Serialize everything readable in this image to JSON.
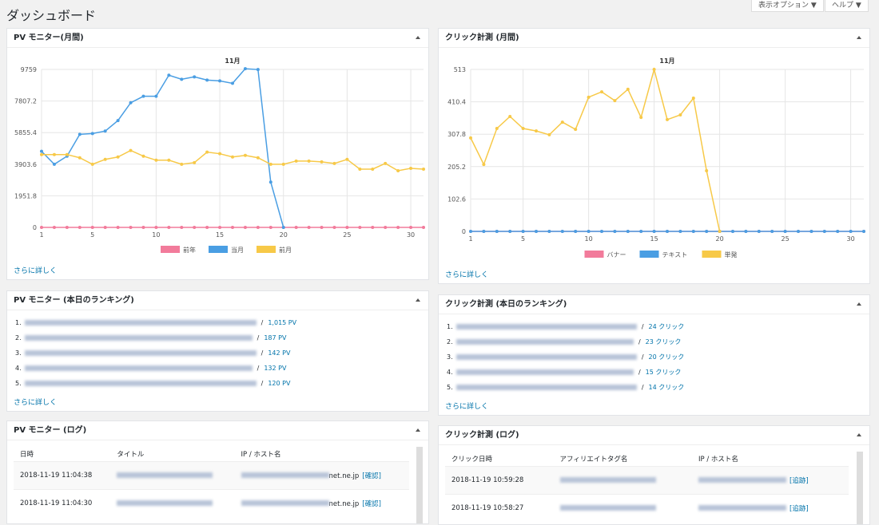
{
  "header": {
    "title": "ダッシュボード",
    "buttons": [
      "表示オプション ▼",
      "ヘルプ ▼"
    ]
  },
  "chart_data": [
    {
      "type": "line",
      "panel_title": "PV モニター(月間)",
      "title": "11月",
      "more": "さらに詳しく",
      "x": [
        1,
        2,
        3,
        4,
        5,
        6,
        7,
        8,
        9,
        10,
        11,
        12,
        13,
        14,
        15,
        16,
        17,
        18,
        19,
        20,
        21,
        22,
        23,
        24,
        25,
        26,
        27,
        28,
        29,
        30,
        31
      ],
      "xlim": [
        1,
        31
      ],
      "xticks": [
        1,
        5,
        10,
        15,
        20,
        25,
        30
      ],
      "ylim": [
        0,
        9759
      ],
      "yticks": [
        0,
        1951.8,
        3903.6,
        5855.4,
        7807.2,
        9759
      ],
      "grid": true,
      "legend": "bottom",
      "series": [
        {
          "name": "前年",
          "color": "#f27b9b",
          "values": [
            0,
            0,
            0,
            0,
            0,
            0,
            0,
            0,
            0,
            0,
            0,
            0,
            0,
            0,
            0,
            0,
            0,
            0,
            0,
            0,
            0,
            0,
            0,
            0,
            0,
            0,
            0,
            0,
            0,
            0,
            0
          ]
        },
        {
          "name": "当月",
          "color": "#4a9ee3",
          "values": [
            4700,
            3900,
            4400,
            5750,
            5800,
            5950,
            6600,
            7700,
            8100,
            8100,
            9400,
            9150,
            9300,
            9100,
            9050,
            8900,
            9800,
            9750,
            2800,
            0,
            null,
            null,
            null,
            null,
            null,
            null,
            null,
            null,
            null,
            null,
            null
          ]
        },
        {
          "name": "前月",
          "color": "#f7c948",
          "values": [
            4500,
            4500,
            4500,
            4300,
            3900,
            4200,
            4350,
            4750,
            4400,
            4150,
            4150,
            3900,
            4000,
            4650,
            4550,
            4350,
            4450,
            4300,
            3900,
            3900,
            4100,
            4100,
            4050,
            3950,
            4200,
            3600,
            3600,
            3950,
            3500,
            3650,
            3600
          ]
        }
      ]
    },
    {
      "type": "line",
      "panel_title": "クリック計測 (月間)",
      "title": "11月",
      "more": "さらに詳しく",
      "x": [
        1,
        2,
        3,
        4,
        5,
        6,
        7,
        8,
        9,
        10,
        11,
        12,
        13,
        14,
        15,
        16,
        17,
        18,
        19,
        20,
        21,
        22,
        23,
        24,
        25,
        26,
        27,
        28,
        29,
        30,
        31
      ],
      "xlim": [
        1,
        31
      ],
      "xticks": [
        1,
        5,
        10,
        15,
        20,
        25,
        30
      ],
      "ylim": [
        0,
        513
      ],
      "yticks": [
        0,
        102.6,
        205.2,
        307.8,
        410.4,
        513
      ],
      "grid": true,
      "legend": "bottom",
      "series": [
        {
          "name": "バナー",
          "color": "#f27b9b",
          "values": [
            0,
            0,
            0,
            0,
            0,
            0,
            0,
            0,
            0,
            0,
            0,
            0,
            0,
            0,
            0,
            0,
            0,
            0,
            0,
            0,
            0,
            0,
            0,
            0,
            0,
            0,
            0,
            0,
            0,
            0,
            0
          ]
        },
        {
          "name": "テキスト",
          "color": "#4a9ee3",
          "values": [
            0,
            0,
            0,
            0,
            0,
            0,
            0,
            0,
            0,
            0,
            0,
            0,
            0,
            0,
            0,
            0,
            0,
            0,
            0,
            0,
            0,
            0,
            0,
            0,
            0,
            0,
            0,
            0,
            0,
            0,
            0
          ]
        },
        {
          "name": "単発",
          "color": "#f7c948",
          "values": [
            296,
            212,
            326,
            364,
            326,
            318,
            306,
            346,
            323,
            425,
            442,
            414,
            450,
            361,
            513,
            354,
            369,
            422,
            192,
            0,
            null,
            null,
            null,
            null,
            null,
            null,
            null,
            null,
            null,
            null,
            null
          ]
        }
      ]
    }
  ],
  "rankings": [
    {
      "title": "PV モニター (本日のランキング)",
      "separator": "/",
      "more": "さらに詳しく",
      "items": [
        {
          "rank": "1.",
          "count": "1,015 PV"
        },
        {
          "rank": "2.",
          "count": "187 PV"
        },
        {
          "rank": "3.",
          "count": "142 PV"
        },
        {
          "rank": "4.",
          "count": "132 PV"
        },
        {
          "rank": "5.",
          "count": "120 PV"
        }
      ]
    },
    {
      "title": "クリック計測 (本日のランキング)",
      "separator": "/",
      "more": "さらに詳しく",
      "items": [
        {
          "rank": "1.",
          "count": "24 クリック"
        },
        {
          "rank": "2.",
          "count": "23 クリック"
        },
        {
          "rank": "3.",
          "count": "20 クリック"
        },
        {
          "rank": "4.",
          "count": "15 クリック"
        },
        {
          "rank": "5.",
          "count": "14 クリック"
        }
      ]
    }
  ],
  "logs": [
    {
      "title": "PV モニター (ログ)",
      "headers": [
        "日時",
        "タイトル",
        "IP / ホスト名"
      ],
      "rows": [
        {
          "date": "2018-11-19 11:04:38",
          "host": "net.ne.jp",
          "action": "[確認]"
        },
        {
          "date": "2018-11-19 11:04:30",
          "host": "net.ne.jp",
          "action": "[確認]"
        }
      ]
    },
    {
      "title": "クリック計測 (ログ)",
      "headers": [
        "クリック日時",
        "アフィリエイトタグ名",
        "IP / ホスト名"
      ],
      "rows": [
        {
          "date": "2018-11-19 10:59:28",
          "host": "",
          "action": "[追跡]"
        },
        {
          "date": "2018-11-19 10:58:27",
          "host": "",
          "action": "[追跡]"
        }
      ]
    }
  ]
}
